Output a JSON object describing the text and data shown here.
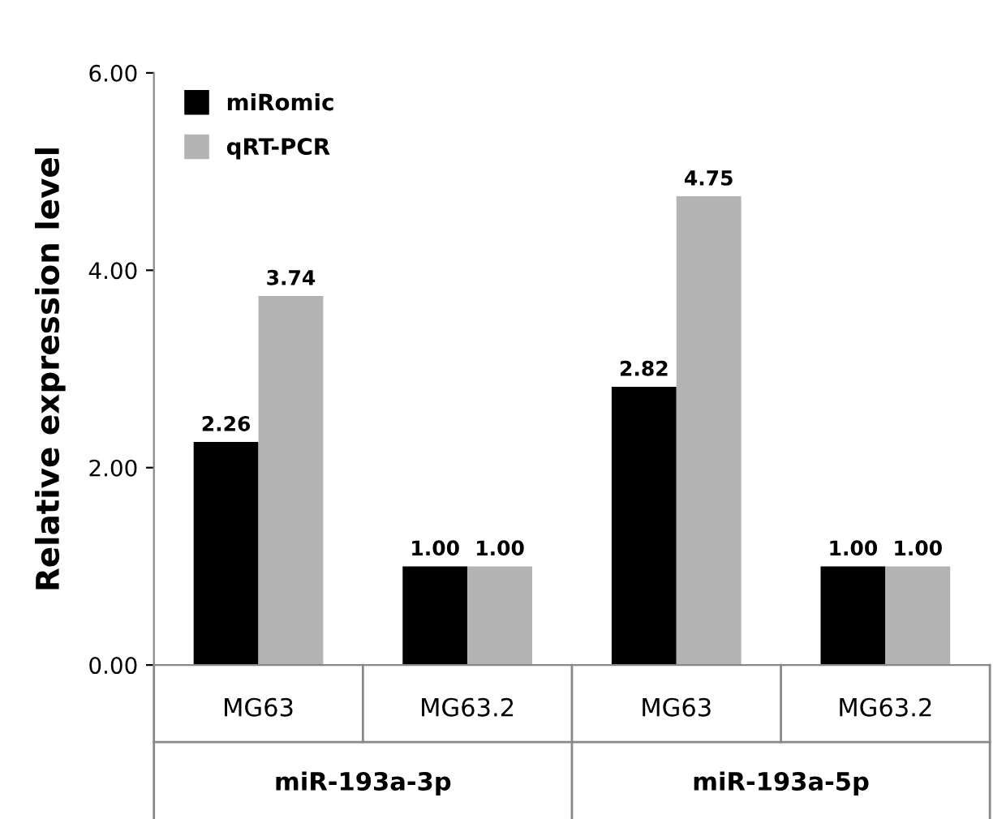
{
  "chart_data": {
    "type": "bar",
    "ylabel": "Relative expression level",
    "categories": [
      "MG63",
      "MG63.2",
      "MG63",
      "MG63.2"
    ],
    "series": [
      {
        "name": "miRomic",
        "color": "#000000",
        "values": [
          2.26,
          1.0,
          2.82,
          1.0
        ],
        "value_labels": [
          "2.26",
          "1.00",
          "2.82",
          "1.00"
        ]
      },
      {
        "name": "qRT-PCR",
        "color": "#b3b3b3",
        "values": [
          3.74,
          1.0,
          4.75,
          1.0
        ],
        "value_labels": [
          "3.74",
          "1.00",
          "4.75",
          "1.00"
        ]
      }
    ],
    "ylim": [
      0,
      6
    ],
    "yticks": [
      {
        "value": 0,
        "label": "0.00"
      },
      {
        "value": 2,
        "label": "2.00"
      },
      {
        "value": 4,
        "label": "4.00"
      },
      {
        "value": 6,
        "label": "6.00"
      }
    ],
    "grid": false,
    "legend": "top left",
    "annotations": [
      "miR-193a-3p",
      "miR-193a-5p"
    ]
  }
}
